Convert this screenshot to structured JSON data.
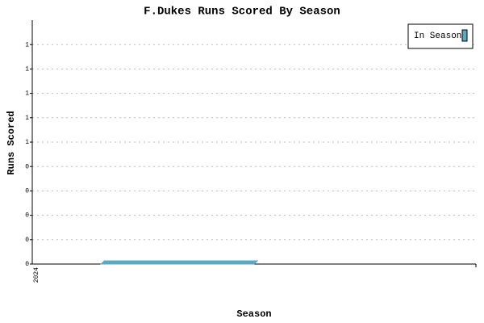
{
  "chart_data": {
    "type": "bar",
    "title": "F.Dukes Runs Scored By Season",
    "x_label": "Season",
    "y_label": "Runs Scored",
    "categories": [
      "2024"
    ],
    "series": [
      {
        "name": "In Season",
        "color": "#5aa9c3",
        "values": [
          0
        ]
      }
    ],
    "ylim": [
      0,
      1
    ],
    "yticks": [
      0,
      {
        "value": 0.1,
        "label": "0"
      },
      {
        "value": 0.2,
        "label": "0"
      },
      {
        "value": 0.3,
        "label": "0"
      },
      {
        "value": 0.4,
        "label": "0"
      },
      {
        "value": 0.5,
        "label": "1"
      },
      {
        "value": 0.6,
        "label": "1"
      },
      {
        "value": 0.7,
        "label": "1"
      },
      {
        "value": 0.8,
        "label": "1"
      },
      {
        "value": 0.9,
        "label": "1"
      }
    ],
    "grid": true,
    "legend": "top-right"
  }
}
